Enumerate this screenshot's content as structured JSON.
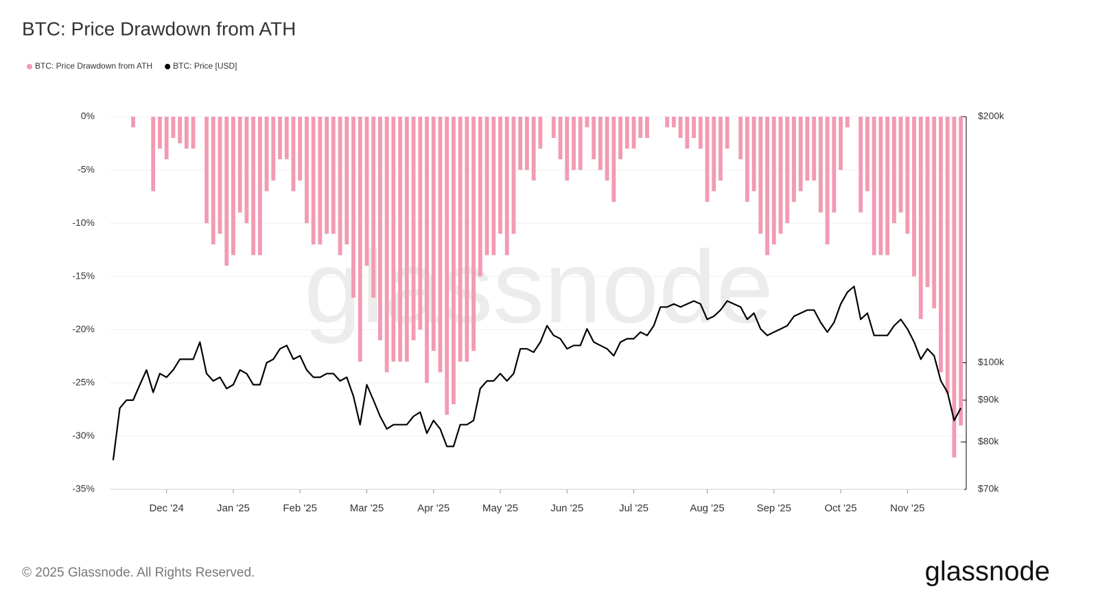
{
  "chart_data": {
    "type": "bar-line",
    "title": "BTC: Price Drawdown from ATH",
    "watermark": "glassnode",
    "footer": "© 2025 Glassnode. All Rights Reserved.",
    "logo": "glassnode",
    "categories": [
      null,
      null,
      null,
      null,
      null,
      null,
      null,
      null,
      "Dec '24",
      null,
      null,
      null,
      null,
      null,
      null,
      null,
      null,
      null,
      "Jan '25",
      null,
      null,
      null,
      null,
      null,
      null,
      null,
      null,
      null,
      "Feb '25",
      null,
      null,
      null,
      null,
      null,
      null,
      null,
      null,
      null,
      "Mar '25",
      null,
      null,
      null,
      null,
      null,
      null,
      null,
      null,
      null,
      "Apr '25",
      null,
      null,
      null,
      null,
      null,
      null,
      null,
      null,
      null,
      "May '25",
      null,
      null,
      null,
      null,
      null,
      null,
      null,
      null,
      null,
      "Jun '25",
      null,
      null,
      null,
      null,
      null,
      null,
      null,
      null,
      null,
      "Jul '25",
      null,
      null,
      null,
      null,
      null,
      null,
      null,
      null,
      null,
      null,
      "Aug '25",
      null,
      null,
      null,
      null,
      null,
      null,
      null,
      null,
      null,
      "Sep '25",
      null,
      null,
      null,
      null,
      null,
      null,
      null,
      null,
      null,
      "Oct '25",
      null,
      null,
      null,
      null,
      null,
      null,
      null,
      null,
      null,
      "Nov '25",
      null,
      null,
      null,
      null,
      null,
      null,
      null,
      null
    ],
    "series": [
      {
        "name": "BTC: Price Drawdown from ATH",
        "type": "bar",
        "color": "#f29bb2",
        "values": [
          0,
          0,
          0,
          -1,
          0,
          0,
          -7,
          -3,
          -4,
          -2,
          -2.5,
          -3,
          -3,
          0,
          -10,
          -12,
          -11,
          -14,
          -13,
          -9,
          -10,
          -13,
          -13,
          -7,
          -6,
          -4,
          -4,
          -7,
          -6,
          -10,
          -12,
          -12,
          -11,
          -11,
          -13,
          -12,
          -17,
          -23,
          -14,
          -17,
          -21,
          -24,
          -23,
          -23,
          -23,
          -21,
          -20,
          -25,
          -22,
          -24,
          -28,
          -27,
          -23,
          -23,
          -22,
          -15,
          -13,
          -13,
          -11,
          -13,
          -11,
          -5,
          -5,
          -6,
          -3,
          0,
          -2,
          -4,
          -6,
          -5,
          -5,
          -1,
          -4,
          -5,
          -6,
          -8,
          -4,
          -3,
          -3,
          -2,
          -2,
          0,
          0,
          -1,
          -1,
          -2,
          -3,
          -2,
          -3,
          -8,
          -7,
          -6,
          -3,
          0,
          -4,
          -8,
          -7,
          -11,
          -13,
          -12,
          -11,
          -10,
          -8,
          -7,
          -6,
          -6,
          -9,
          -12,
          -9,
          -5,
          -1,
          0,
          -9,
          -7,
          -13,
          -13,
          -13,
          -10,
          -9,
          -11,
          -15,
          -19,
          -16,
          -18,
          -24,
          -26,
          -32,
          -29
        ]
      },
      {
        "name": "BTC: Price [USD]",
        "type": "line",
        "axis": "y2",
        "color": "#000000",
        "values": [
          76000,
          88000,
          90000,
          90000,
          94000,
          98000,
          92000,
          97000,
          96000,
          98000,
          101000,
          101000,
          101000,
          106000,
          97000,
          95000,
          96000,
          93000,
          94000,
          98000,
          97000,
          94000,
          94000,
          100000,
          101000,
          104000,
          105000,
          101000,
          102000,
          98000,
          96000,
          96000,
          97000,
          97000,
          95000,
          96000,
          91000,
          84000,
          94000,
          90000,
          86000,
          83000,
          84000,
          84000,
          84000,
          86000,
          87000,
          82000,
          85000,
          83000,
          79000,
          79000,
          84000,
          84000,
          85000,
          93000,
          95000,
          95000,
          97000,
          95000,
          97000,
          104000,
          104000,
          103000,
          106000,
          111000,
          108000,
          107000,
          104000,
          105000,
          105000,
          110000,
          106000,
          105000,
          104000,
          102000,
          106000,
          107000,
          107000,
          109000,
          108000,
          111000,
          117000,
          117000,
          118000,
          117000,
          118000,
          119000,
          118000,
          113000,
          114000,
          116000,
          119000,
          118000,
          117000,
          113000,
          115000,
          110000,
          108000,
          109000,
          110000,
          111000,
          114000,
          115000,
          116000,
          116000,
          112000,
          109000,
          112000,
          118000,
          122000,
          124000,
          113000,
          115000,
          108000,
          108000,
          108000,
          111000,
          113000,
          110000,
          106000,
          101000,
          104000,
          102000,
          95000,
          92000,
          85000,
          88000
        ]
      }
    ],
    "ylim": [
      -35,
      0
    ],
    "yticks": [
      {
        "value": 0,
        "label": "0%"
      },
      {
        "value": -5,
        "label": "-5%"
      },
      {
        "value": -10,
        "label": "-10%"
      },
      {
        "value": -15,
        "label": "-15%"
      },
      {
        "value": -20,
        "label": "-20%"
      },
      {
        "value": -25,
        "label": "-25%"
      },
      {
        "value": -30,
        "label": "-30%"
      },
      {
        "value": -35,
        "label": "-35%"
      }
    ],
    "y2lim": [
      70000,
      200000
    ],
    "y2log": true,
    "y2ticks": [
      {
        "value": 70000,
        "label": "$70k"
      },
      {
        "value": 80000,
        "label": "$80k"
      },
      {
        "value": 90000,
        "label": "$90k"
      },
      {
        "value": 100000,
        "label": "$100k"
      },
      {
        "value": 200000,
        "label": "$200k"
      }
    ],
    "grid": true,
    "legend": "top-left"
  }
}
